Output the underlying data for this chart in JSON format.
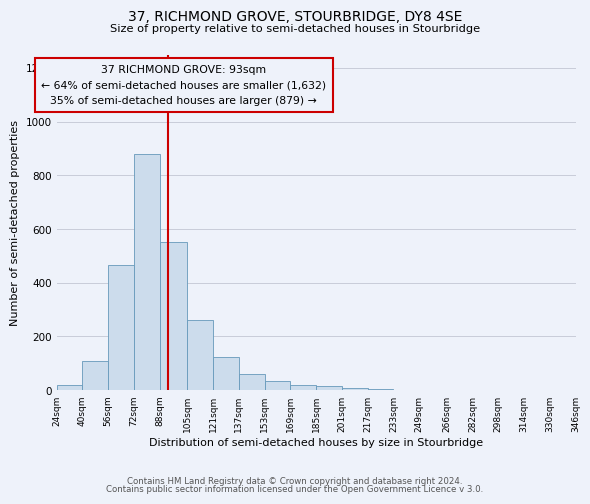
{
  "title": "37, RICHMOND GROVE, STOURBRIDGE, DY8 4SE",
  "subtitle": "Size of property relative to semi-detached houses in Stourbridge",
  "xlabel": "Distribution of semi-detached houses by size in Stourbridge",
  "ylabel": "Number of semi-detached properties",
  "bin_labels": [
    "24sqm",
    "40sqm",
    "56sqm",
    "72sqm",
    "88sqm",
    "105sqm",
    "121sqm",
    "137sqm",
    "153sqm",
    "169sqm",
    "185sqm",
    "201sqm",
    "217sqm",
    "233sqm",
    "249sqm",
    "266sqm",
    "282sqm",
    "298sqm",
    "314sqm",
    "330sqm",
    "346sqm"
  ],
  "bin_edges": [
    24,
    40,
    56,
    72,
    88,
    105,
    121,
    137,
    153,
    169,
    185,
    201,
    217,
    233,
    249,
    266,
    282,
    298,
    314,
    330,
    346
  ],
  "bar_values": [
    18,
    110,
    465,
    880,
    550,
    260,
    125,
    62,
    35,
    20,
    15,
    8,
    4,
    2,
    2,
    0,
    0,
    0,
    0,
    0
  ],
  "bar_color": "#ccdcec",
  "bar_edge_color": "#6699bb",
  "property_value": 93,
  "vline_color": "#cc0000",
  "annotation_title": "37 RICHMOND GROVE: 93sqm",
  "annotation_line1": "← 64% of semi-detached houses are smaller (1,632)",
  "annotation_line2": "35% of semi-detached houses are larger (879) →",
  "annotation_box_edge": "#cc0000",
  "ylim": [
    0,
    1250
  ],
  "yticks": [
    0,
    200,
    400,
    600,
    800,
    1000,
    1200
  ],
  "footer1": "Contains HM Land Registry data © Crown copyright and database right 2024.",
  "footer2": "Contains public sector information licensed under the Open Government Licence v 3.0.",
  "bg_color": "#eef2fa",
  "grid_color": "#c8ccd8"
}
